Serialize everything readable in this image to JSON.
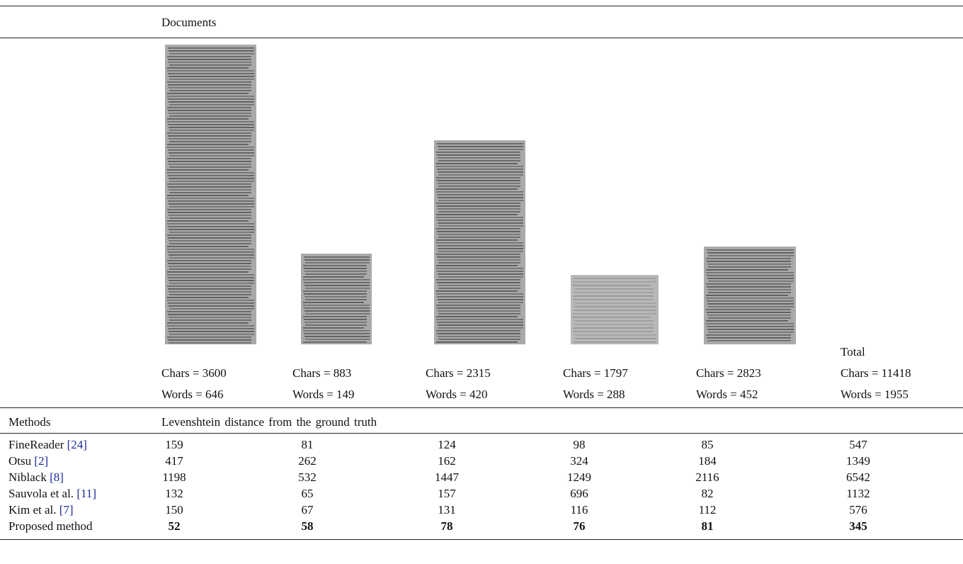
{
  "table": {
    "header": {
      "documents": "Documents",
      "total": "Total",
      "methods": "Methods",
      "metric": "Levenshtein distance from the ground truth"
    },
    "documents": [
      {
        "chars": "Chars = 3600",
        "words": "Words = 646"
      },
      {
        "chars": "Chars = 883",
        "words": "Words = 149"
      },
      {
        "chars": "Chars = 2315",
        "words": "Words = 420"
      },
      {
        "chars": "Chars = 1797",
        "words": "Words = 288"
      },
      {
        "chars": "Chars = 2823",
        "words": "Words = 452"
      },
      {
        "chars": "Chars = 11418",
        "words": "Words = 1955"
      }
    ],
    "rows": [
      {
        "name": "FineReader",
        "ref": "[24]",
        "values": [
          "159",
          "81",
          "124",
          "98",
          "85",
          "547"
        ]
      },
      {
        "name": "Otsu",
        "ref": "[2]",
        "values": [
          "417",
          "262",
          "162",
          "324",
          "184",
          "1349"
        ]
      },
      {
        "name": "Niblack",
        "ref": "[8]",
        "values": [
          "1198",
          "532",
          "1447",
          "1249",
          "2116",
          "6542"
        ]
      },
      {
        "name": "Sauvola et al.",
        "ref": "[11]",
        "values": [
          "132",
          "65",
          "157",
          "696",
          "82",
          "1132"
        ]
      },
      {
        "name": "Kim et al.",
        "ref": "[7]",
        "values": [
          "150",
          "67",
          "131",
          "116",
          "112",
          "576"
        ]
      },
      {
        "name": "Proposed method",
        "values": [
          "52",
          "58",
          "78",
          "76",
          "81",
          "345"
        ]
      }
    ]
  }
}
